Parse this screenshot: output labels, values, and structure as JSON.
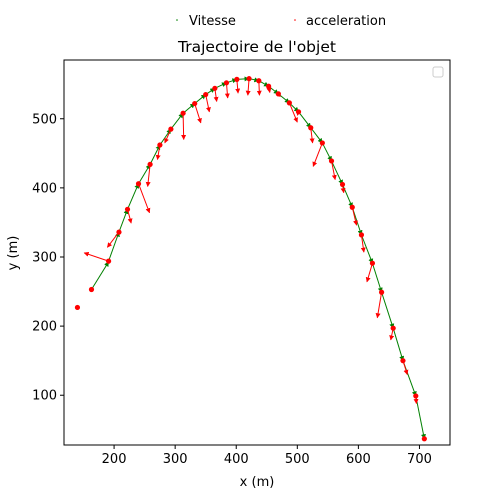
{
  "chart_data": {
    "type": "scatter",
    "title": "Trajectoire de l'objet",
    "xlabel": "x (m)",
    "ylabel": "y (m)",
    "xlim": [
      118,
      750
    ],
    "ylim": [
      28,
      585
    ],
    "xticks": [
      200,
      300,
      400,
      500,
      600,
      700
    ],
    "yticks": [
      100,
      200,
      300,
      400,
      500
    ],
    "grid": false,
    "legend_placement": "above plot",
    "legend": [
      {
        "label": "Vitesse",
        "color": "#008000"
      },
      {
        "label": "acceleration",
        "color": "#ff0000"
      }
    ],
    "inner_legend_placement": "upper right",
    "colors": {
      "points": "#ff0000",
      "velocity": "#008000",
      "acceleration": "#ff0000"
    },
    "points": [
      {
        "x": 140,
        "y": 227
      },
      {
        "x": 163,
        "y": 253
      },
      {
        "x": 191,
        "y": 294
      },
      {
        "x": 208,
        "y": 336
      },
      {
        "x": 222,
        "y": 369
      },
      {
        "x": 240,
        "y": 406
      },
      {
        "x": 259,
        "y": 434
      },
      {
        "x": 275,
        "y": 462
      },
      {
        "x": 293,
        "y": 485
      },
      {
        "x": 313,
        "y": 508
      },
      {
        "x": 332,
        "y": 522
      },
      {
        "x": 350,
        "y": 535
      },
      {
        "x": 365,
        "y": 544
      },
      {
        "x": 384,
        "y": 552
      },
      {
        "x": 401,
        "y": 557
      },
      {
        "x": 421,
        "y": 558
      },
      {
        "x": 437,
        "y": 555
      },
      {
        "x": 453,
        "y": 547
      },
      {
        "x": 469,
        "y": 536
      },
      {
        "x": 487,
        "y": 523
      },
      {
        "x": 502,
        "y": 510
      },
      {
        "x": 522,
        "y": 487
      },
      {
        "x": 541,
        "y": 465
      },
      {
        "x": 556,
        "y": 439
      },
      {
        "x": 574,
        "y": 405
      },
      {
        "x": 590,
        "y": 372
      },
      {
        "x": 605,
        "y": 332
      },
      {
        "x": 623,
        "y": 291
      },
      {
        "x": 638,
        "y": 249
      },
      {
        "x": 657,
        "y": 197
      },
      {
        "x": 673,
        "y": 150
      },
      {
        "x": 694,
        "y": 99
      },
      {
        "x": 708,
        "y": 37
      }
    ],
    "velocity": [
      {
        "x": 163,
        "y": 253,
        "dx": 28,
        "dy": 40
      },
      {
        "x": 191,
        "y": 294,
        "dx": 17,
        "dy": 42
      },
      {
        "x": 208,
        "y": 336,
        "dx": 14,
        "dy": 33
      },
      {
        "x": 222,
        "y": 369,
        "dx": 18,
        "dy": 37
      },
      {
        "x": 240,
        "y": 406,
        "dx": 19,
        "dy": 28
      },
      {
        "x": 259,
        "y": 434,
        "dx": 16,
        "dy": 28
      },
      {
        "x": 275,
        "y": 462,
        "dx": 18,
        "dy": 23
      },
      {
        "x": 293,
        "y": 485,
        "dx": 20,
        "dy": 23
      },
      {
        "x": 313,
        "y": 508,
        "dx": 19,
        "dy": 14
      },
      {
        "x": 332,
        "y": 522,
        "dx": 18,
        "dy": 13
      },
      {
        "x": 350,
        "y": 535,
        "dx": 15,
        "dy": 9
      },
      {
        "x": 365,
        "y": 544,
        "dx": 19,
        "dy": 8
      },
      {
        "x": 384,
        "y": 552,
        "dx": 17,
        "dy": 5
      },
      {
        "x": 401,
        "y": 557,
        "dx": 20,
        "dy": 1
      },
      {
        "x": 421,
        "y": 558,
        "dx": 16,
        "dy": -3
      },
      {
        "x": 437,
        "y": 555,
        "dx": 16,
        "dy": -8
      },
      {
        "x": 453,
        "y": 547,
        "dx": 16,
        "dy": -11
      },
      {
        "x": 469,
        "y": 536,
        "dx": 18,
        "dy": -13
      },
      {
        "x": 487,
        "y": 523,
        "dx": 15,
        "dy": -13
      },
      {
        "x": 502,
        "y": 510,
        "dx": 20,
        "dy": -23
      },
      {
        "x": 522,
        "y": 487,
        "dx": 19,
        "dy": -22
      },
      {
        "x": 541,
        "y": 465,
        "dx": 15,
        "dy": -26
      },
      {
        "x": 556,
        "y": 439,
        "dx": 18,
        "dy": -34
      },
      {
        "x": 574,
        "y": 405,
        "dx": 16,
        "dy": -33
      },
      {
        "x": 590,
        "y": 372,
        "dx": 15,
        "dy": -40
      },
      {
        "x": 605,
        "y": 332,
        "dx": 18,
        "dy": -41
      },
      {
        "x": 623,
        "y": 291,
        "dx": 15,
        "dy": -42
      },
      {
        "x": 638,
        "y": 249,
        "dx": 19,
        "dy": -52
      },
      {
        "x": 657,
        "y": 197,
        "dx": 16,
        "dy": -47
      },
      {
        "x": 673,
        "y": 150,
        "dx": 21,
        "dy": -51
      },
      {
        "x": 694,
        "y": 99,
        "dx": 14,
        "dy": -62
      }
    ],
    "acceleration": [
      {
        "x": 191,
        "y": 294,
        "dx": -40,
        "dy": 12
      },
      {
        "x": 208,
        "y": 336,
        "dx": -19,
        "dy": -22
      },
      {
        "x": 222,
        "y": 369,
        "dx": 6,
        "dy": -20
      },
      {
        "x": 240,
        "y": 406,
        "dx": 18,
        "dy": -42
      },
      {
        "x": 259,
        "y": 434,
        "dx": -4,
        "dy": -32
      },
      {
        "x": 275,
        "y": 462,
        "dx": -4,
        "dy": -21
      },
      {
        "x": 293,
        "y": 485,
        "dx": -10,
        "dy": -20
      },
      {
        "x": 313,
        "y": 508,
        "dx": 1,
        "dy": -38
      },
      {
        "x": 332,
        "y": 522,
        "dx": 10,
        "dy": -28
      },
      {
        "x": 350,
        "y": 535,
        "dx": 6,
        "dy": -25
      },
      {
        "x": 365,
        "y": 544,
        "dx": 3,
        "dy": -19
      },
      {
        "x": 384,
        "y": 552,
        "dx": 2,
        "dy": -22
      },
      {
        "x": 401,
        "y": 557,
        "dx": 2,
        "dy": -20
      },
      {
        "x": 421,
        "y": 558,
        "dx": -2,
        "dy": -24
      },
      {
        "x": 437,
        "y": 555,
        "dx": 1,
        "dy": -21
      },
      {
        "x": 453,
        "y": 547,
        "dx": 2,
        "dy": -9
      },
      {
        "x": 469,
        "y": 536,
        "dx": 3,
        "dy": -4
      },
      {
        "x": 487,
        "y": 523,
        "dx": 13,
        "dy": -28
      },
      {
        "x": 502,
        "y": 510,
        "dx": -2,
        "dy": -5
      },
      {
        "x": 522,
        "y": 487,
        "dx": 3,
        "dy": -22
      },
      {
        "x": 541,
        "y": 465,
        "dx": -15,
        "dy": -34
      },
      {
        "x": 556,
        "y": 439,
        "dx": 6,
        "dy": -27
      },
      {
        "x": 574,
        "y": 405,
        "dx": 2,
        "dy": -12
      },
      {
        "x": 590,
        "y": 372,
        "dx": 7,
        "dy": -26
      },
      {
        "x": 605,
        "y": 332,
        "dx": 4,
        "dy": -25
      },
      {
        "x": 623,
        "y": 291,
        "dx": -9,
        "dy": -27
      },
      {
        "x": 638,
        "y": 249,
        "dx": -7,
        "dy": -37
      },
      {
        "x": 657,
        "y": 197,
        "dx": -4,
        "dy": -17
      },
      {
        "x": 673,
        "y": 150,
        "dx": 7,
        "dy": -20
      },
      {
        "x": 694,
        "y": 99,
        "dx": 1,
        "dy": -11
      }
    ]
  }
}
